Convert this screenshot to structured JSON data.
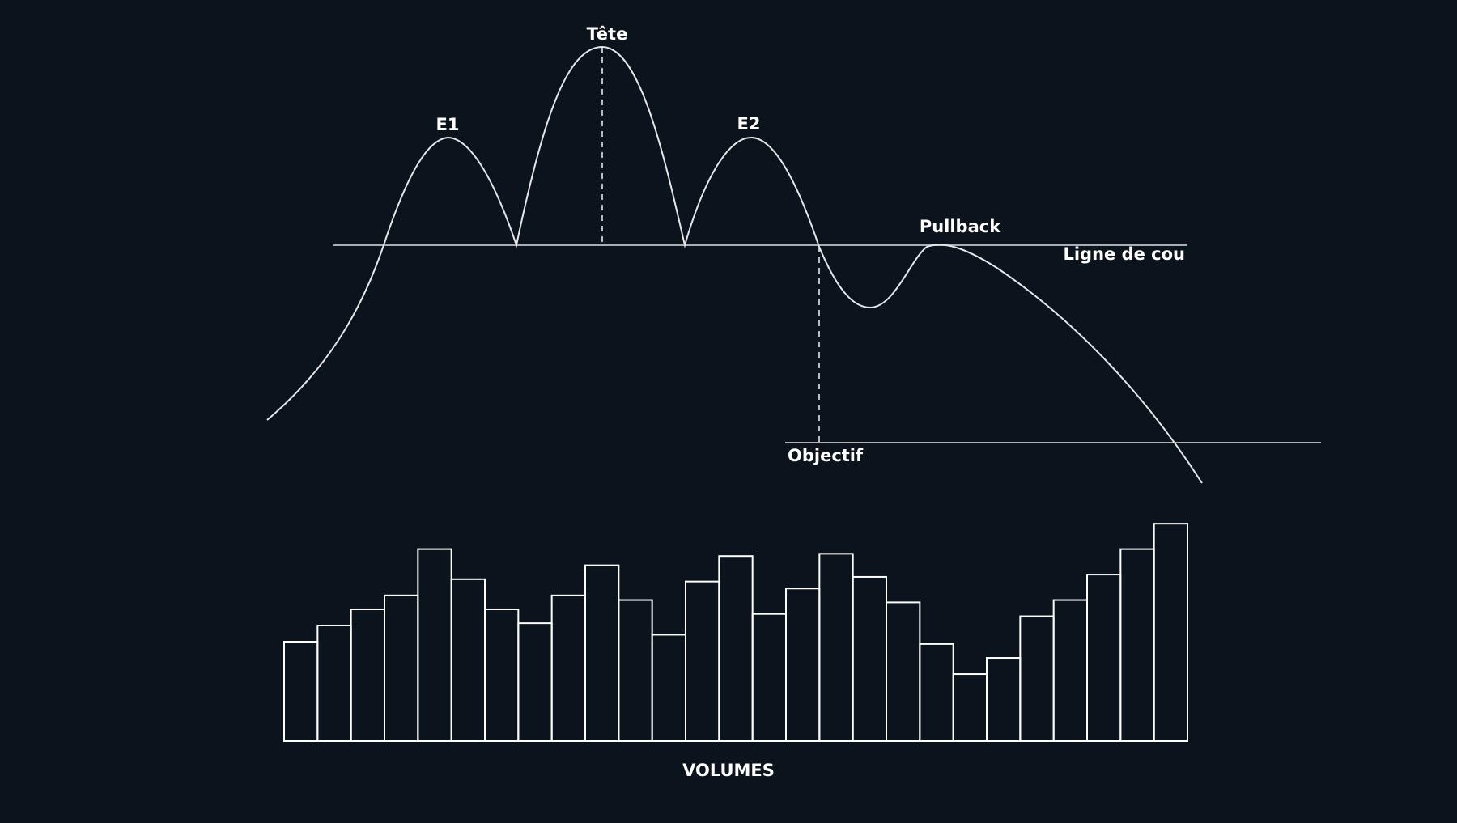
{
  "colors": {
    "background": "#0b131c",
    "price_line": "#e6e6e6",
    "neckline": "#a8adb3",
    "volume_bar": "#ffffff"
  },
  "labels": {
    "left_shoulder": "E1",
    "head": "Tête",
    "right_shoulder": "E2",
    "pullback": "Pullback",
    "neckline": "Ligne de cou",
    "target": "Objectif",
    "volumes": "VOLUMES"
  },
  "chart_data": {
    "type": "bar",
    "title": "",
    "xlabel": "VOLUMES",
    "ylabel": "",
    "values": [
      43,
      50,
      57,
      63,
      83,
      70,
      57,
      51,
      63,
      76,
      61,
      46,
      69,
      80,
      55,
      66,
      81,
      71,
      60,
      42,
      29,
      36,
      54,
      61,
      72,
      83,
      94
    ],
    "ylim": [
      0,
      100
    ]
  }
}
